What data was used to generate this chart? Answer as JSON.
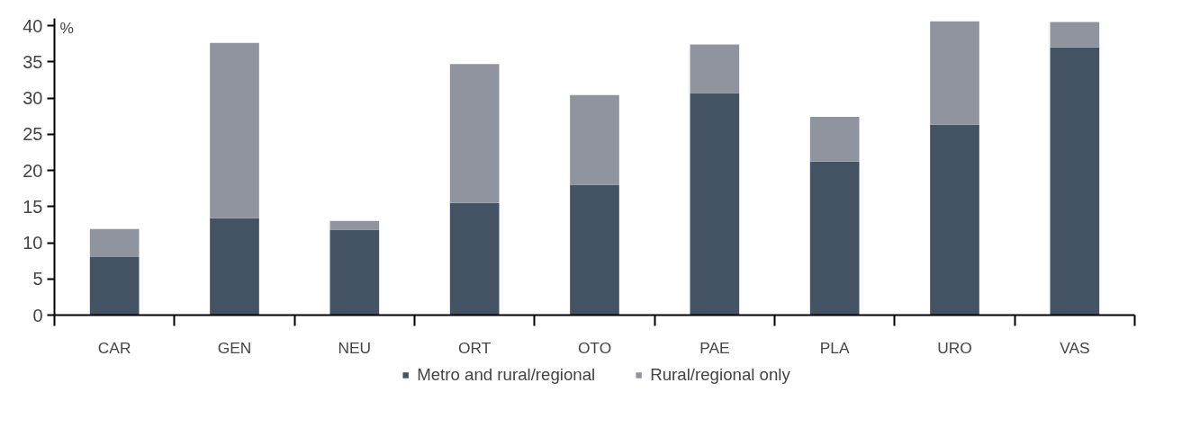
{
  "chart_data": {
    "type": "bar",
    "stacked": true,
    "ylabel": "%",
    "categories": [
      "CAR",
      "GEN",
      "NEU",
      "ORT",
      "OTO",
      "PAE",
      "PLA",
      "URO",
      "VAS"
    ],
    "series": [
      {
        "name": "Metro and rural/regional",
        "color": "#435364",
        "values": [
          8.0,
          13.4,
          11.8,
          15.5,
          18.0,
          30.7,
          21.2,
          26.3,
          37.0
        ]
      },
      {
        "name": "Rural/regional only",
        "color": "#90949e",
        "values": [
          3.9,
          24.2,
          1.2,
          19.2,
          12.4,
          6.7,
          6.2,
          14.3,
          3.5
        ]
      }
    ],
    "ylim": [
      0,
      41
    ],
    "yticks": [
      0,
      5,
      10,
      15,
      20,
      25,
      30,
      35,
      40
    ],
    "grid": false,
    "legend": "bottom"
  }
}
